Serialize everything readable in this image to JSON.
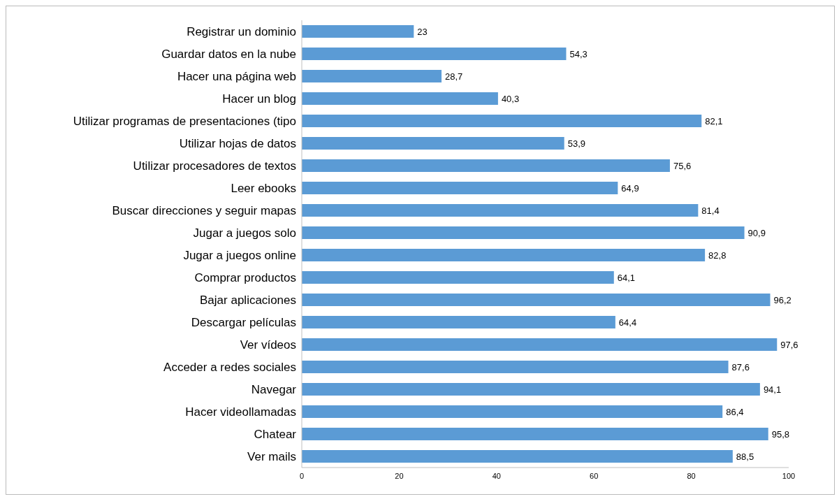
{
  "chart_data": {
    "type": "bar",
    "orientation": "horizontal",
    "categories": [
      "Registrar un dominio",
      "Guardar datos en la nube",
      "Hacer una página web",
      "Hacer un blog",
      "Utilizar programas de presentaciones (tipo",
      "Utilizar hojas de datos",
      "Utilizar procesadores de textos",
      "Leer ebooks",
      "Buscar direcciones y seguir mapas",
      "Jugar a juegos solo",
      "Jugar a juegos online",
      "Comprar productos",
      "Bajar aplicaciones",
      "Descargar películas",
      "Ver vídeos",
      "Acceder a redes sociales",
      "Navegar",
      "Hacer videollamadas",
      "Chatear",
      "Ver mails"
    ],
    "values": [
      23,
      54.3,
      28.7,
      40.3,
      82.1,
      53.9,
      75.6,
      64.9,
      81.4,
      90.9,
      82.8,
      64.1,
      96.2,
      64.4,
      97.6,
      87.6,
      94.1,
      86.4,
      95.8,
      88.5
    ],
    "value_labels": [
      "23",
      "54,3",
      "28,7",
      "40,3",
      "82,1",
      "53,9",
      "75,6",
      "64,9",
      "81,4",
      "90,9",
      "82,8",
      "64,1",
      "96,2",
      "64,4",
      "97,6",
      "87,6",
      "94,1",
      "86,4",
      "95,8",
      "88,5"
    ],
    "color": "#5b9bd5",
    "xlim": [
      0,
      100
    ],
    "xticks": [
      0,
      20,
      40,
      60,
      80,
      100
    ]
  }
}
